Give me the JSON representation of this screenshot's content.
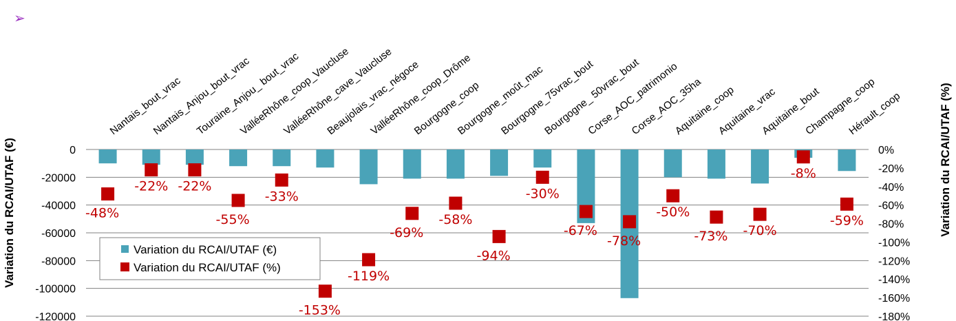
{
  "colors": {
    "bar": "#4aa3b8",
    "marker": "#c00000",
    "grid": "#808080",
    "bullet": "#9b30c0"
  },
  "chart_data": {
    "type": "bar",
    "categories": [
      "Nantais_bout_vrac",
      "Nantais_Anjou_bout_vrac",
      "Touraine_Anjou_ bout_vrac",
      "ValléeRhône_coop_Vaucluse",
      "ValléeRhône_cave_Vaucluse",
      "Beaujolais_vrac_négoce",
      "ValléeRhône_coop_Drôme",
      "Bourgogne_coop",
      "Bourgogne_moût_mac",
      "Bourgogne_75vrac_bout",
      "Bourgogne_ 50vrac_bout",
      "Corse_AOC_patrimonio",
      "Corse_AOC_35ha",
      "Aquitaine_coop",
      "Aquitaine_vrac",
      "Aquitaine_bout",
      "Champagne_coop",
      "Hérault_coop"
    ],
    "series": [
      {
        "name": "Variation du RCAI/UTAF (€)",
        "type": "bar",
        "axis": "left",
        "values": [
          -10000,
          -11000,
          -11000,
          -12000,
          -12000,
          -13000,
          -25000,
          -21000,
          -21000,
          -19000,
          -13000,
          -53000,
          -107000,
          -20000,
          -21000,
          -24500,
          -6000,
          -15500
        ]
      },
      {
        "name": "Variation du RCAI/UTAF (%)",
        "type": "scatter",
        "axis": "right",
        "values": [
          -48,
          -22,
          -22,
          -55,
          -33,
          -153,
          -119,
          -69,
          -58,
          -94,
          -30,
          -67,
          -78,
          -50,
          -73,
          -70,
          -8,
          -59
        ]
      }
    ],
    "data_labels": [
      "-48%",
      "-22%",
      "-22%",
      "-55%",
      "-33%",
      "-153%",
      "-119%",
      "-69%",
      "-58%",
      "-94%",
      "-30%",
      "-67%",
      "-78%",
      "-50%",
      "-73%",
      "-70%",
      "-8%",
      "-59%"
    ],
    "ylabel": "Variation du RCAI/UTAF (€)",
    "y2label": "Variation du RCAI/UTAF (%)",
    "ylim": [
      -120000,
      0
    ],
    "y2lim": [
      -180,
      0
    ],
    "yticks": [
      "0",
      "-20000",
      "-40000",
      "-60000",
      "-80000",
      "-100000",
      "-120000"
    ],
    "y2ticks": [
      "0%",
      "-20%",
      "-40%",
      "-60%",
      "-80%",
      "-100%",
      "-120%",
      "-140%",
      "-160%",
      "-180%"
    ],
    "grid": true,
    "legend": "bottom-left",
    "bullet_glyph": "➢"
  }
}
